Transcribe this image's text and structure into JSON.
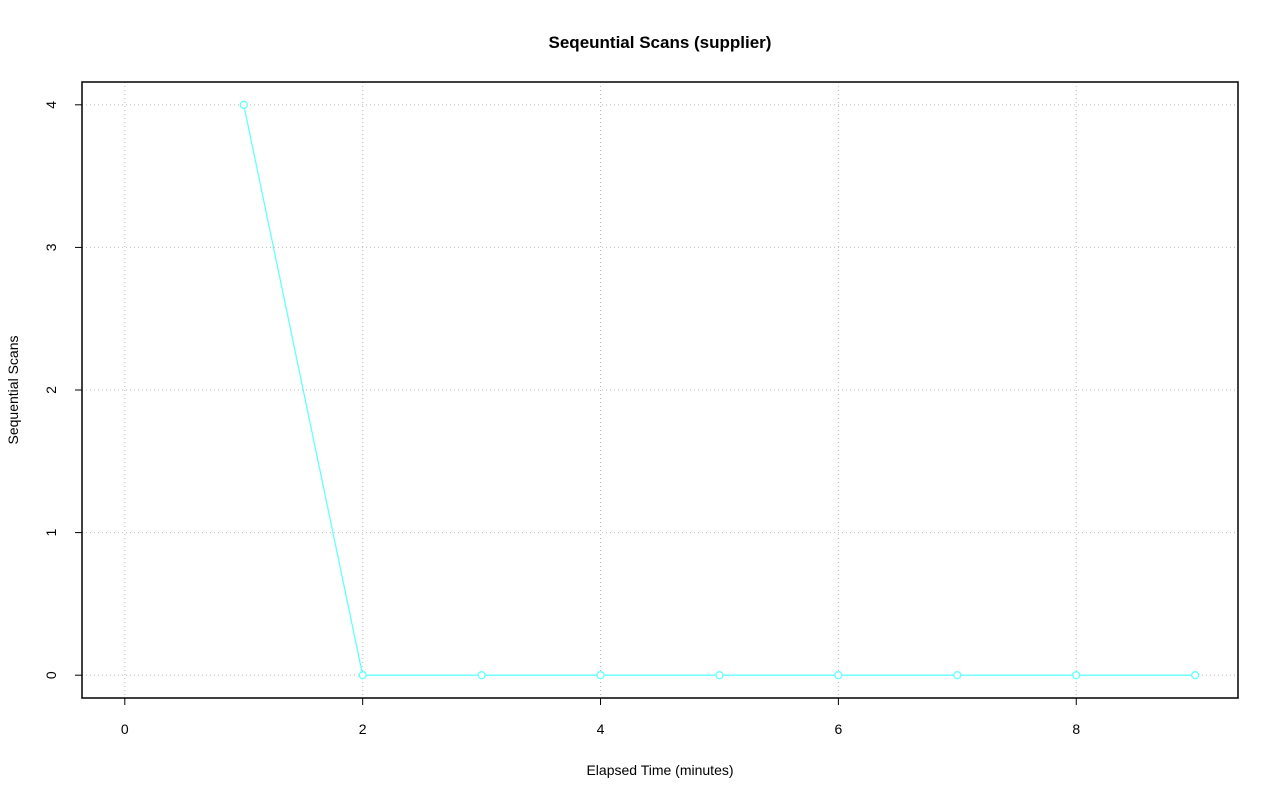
{
  "chart_data": {
    "type": "line",
    "title": "Seqeuntial Scans (supplier)",
    "x_label": "Elapsed Time (minutes)",
    "y_label": "Sequential Scans",
    "x": [
      1,
      2,
      3,
      4,
      5,
      6,
      7,
      8,
      9
    ],
    "series": [
      {
        "name": "supplier",
        "color": "#66ffff",
        "values": [
          4,
          0,
          0,
          0,
          0,
          0,
          0,
          0,
          0
        ]
      }
    ],
    "xlim": [
      -0.36,
      9.36
    ],
    "ylim": [
      -0.16,
      4.16
    ],
    "xticks": [
      0,
      2,
      4,
      6,
      8
    ],
    "yticks": [
      0,
      1,
      2,
      3,
      4
    ],
    "grid": true,
    "markers": true
  }
}
